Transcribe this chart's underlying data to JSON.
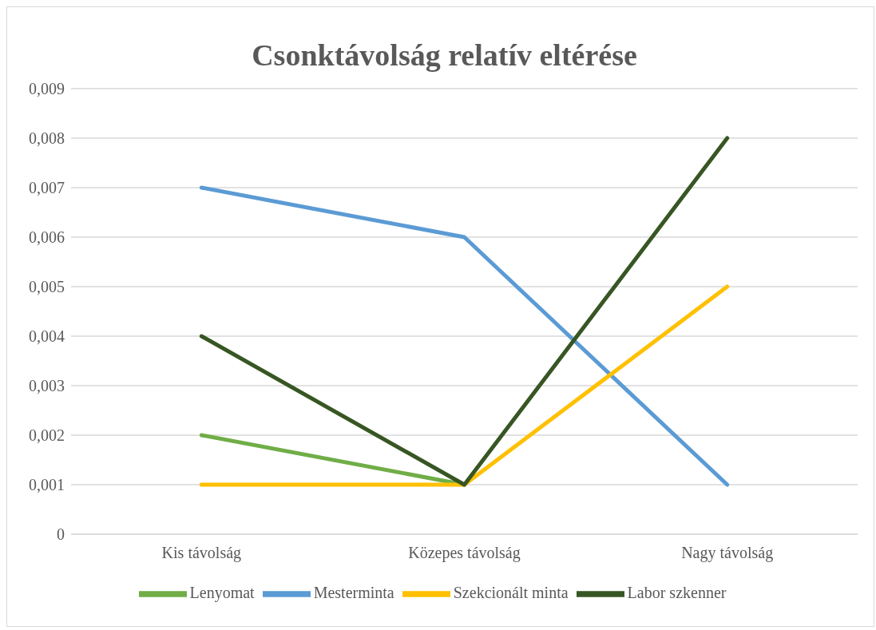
{
  "chart_data": {
    "type": "line",
    "title": "Csonktávolság relatív eltérése",
    "categories": [
      "Kis távolság",
      "Közepes távolság",
      "Nagy távolság"
    ],
    "series": [
      {
        "name": "Lenyomat",
        "color": "#70ad47",
        "values": [
          0.002,
          0.001,
          null
        ]
      },
      {
        "name": "Mesterminta",
        "color": "#5b9bd5",
        "values": [
          0.007,
          0.006,
          0.001
        ]
      },
      {
        "name": "Szekcionált minta",
        "color": "#ffc000",
        "values": [
          0.001,
          0.001,
          0.005
        ]
      },
      {
        "name": "Labor szkenner",
        "color": "#375623",
        "values": [
          0.004,
          0.001,
          0.008
        ]
      }
    ],
    "ylim": [
      0,
      0.009
    ],
    "yticks": [
      0,
      {
        "value": 0.001,
        "label": "0,001"
      },
      {
        "value": 0.002,
        "label": "0,002"
      },
      {
        "value": 0.003,
        "label": "0,003"
      },
      {
        "value": 0.004,
        "label": "0,004"
      },
      {
        "value": 0.005,
        "label": "0,005"
      },
      {
        "value": 0.006,
        "label": "0,006"
      },
      {
        "value": 0.007,
        "label": "0,007"
      },
      {
        "value": 0.008,
        "label": "0,008"
      },
      {
        "value": 0.009,
        "label": "0,009"
      }
    ],
    "grid": "y",
    "legend": "bottom",
    "marker": "none",
    "line_style": "solid"
  }
}
